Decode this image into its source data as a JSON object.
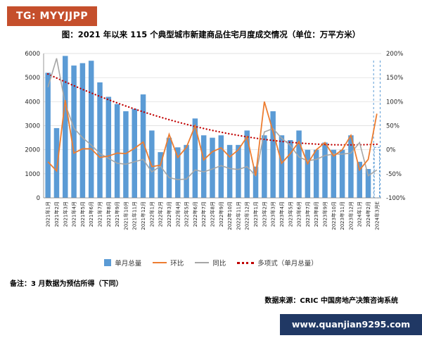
{
  "header": {
    "tg_badge": "TG: MYYJJPP"
  },
  "title": "图：2021 年以来 115 个典型城市新建商品住宅月度成交情况（单位：万平方米）",
  "footer": {
    "note": "备注：3 月数据为预估所得（下同）",
    "source": "数据来源：CRIC 中国房地产决策咨询系统",
    "website_badge": "www.quanjian9295.com"
  },
  "colors": {
    "bar": "#5B9BD5",
    "mom_line": "#ED7D31",
    "yoy_line": "#A6A6A6",
    "trend_line": "#C00000",
    "tg_badge_bg": "#C54F2C",
    "website_badge_bg": "#203864",
    "grid": "#D9D9D9",
    "axis": "#808080",
    "tick_text": "#262626"
  },
  "chart_data": {
    "type": "combo",
    "title": "图：2021 年以来 115 个典型城市新建商品住宅月度成交情况（单位：万平方米）",
    "legend": [
      "单月总量",
      "环比",
      "同比",
      "多项式（单月总量）"
    ],
    "legend_position": "bottom",
    "grid": true,
    "x_labels_rotated": true,
    "estimated_last_point": true,
    "left_axis": {
      "min": 0,
      "max": 6000,
      "step": 1000,
      "ticks": [
        0,
        1000,
        2000,
        3000,
        4000,
        5000,
        6000
      ]
    },
    "right_axis": {
      "min": -100,
      "max": 200,
      "step": 50,
      "ticks": [
        "-100%",
        "-50%",
        "0%",
        "50%",
        "100%",
        "150%",
        "200%"
      ]
    },
    "categories": [
      "2021年1月",
      "2021年2月",
      "2021年3月",
      "2021年4月",
      "2021年5月",
      "2021年6月",
      "2021年7月",
      "2021年8月",
      "2021年9月",
      "2021年10月",
      "2021年11月",
      "2021年12月",
      "2022年1月",
      "2022年2月",
      "2022年3月",
      "2022年4月",
      "2022年5月",
      "2022年6月",
      "2022年7月",
      "2022年8月",
      "2022年9月",
      "2022年10月",
      "2022年11月",
      "2022年12月",
      "2023年1月",
      "2023年2月",
      "2023年3月",
      "2023年4月",
      "2023年5月",
      "2023年6月",
      "2023年7月",
      "2023年8月",
      "2023年9月",
      "2023年10月",
      "2023年11月",
      "2023年12月",
      "2024年1月",
      "2024年2月",
      "2024年3月E"
    ],
    "series": [
      {
        "name": "单月总量",
        "type": "bar",
        "axis": "left",
        "unit": "万平方米",
        "values": [
          5200,
          2900,
          5900,
          5500,
          5600,
          5700,
          4800,
          4200,
          3900,
          3600,
          3700,
          4300,
          2800,
          1900,
          2500,
          2100,
          2200,
          3300,
          2600,
          2500,
          2600,
          2200,
          2200,
          2800,
          1300,
          2600,
          3600,
          2600,
          2400,
          2800,
          2000,
          2000,
          2300,
          2000,
          2000,
          2600,
          1500,
          1200,
          2100
        ]
      },
      {
        "name": "环比",
        "type": "line",
        "axis": "right",
        "unit": "%",
        "values": [
          -25,
          -44,
          103,
          -7,
          2,
          2,
          -16,
          -13,
          -7,
          -8,
          3,
          16,
          -35,
          -32,
          32,
          -16,
          5,
          50,
          -21,
          -4,
          4,
          -15,
          0,
          27,
          -54,
          100,
          38,
          -28,
          -8,
          17,
          -29,
          0,
          15,
          -13,
          0,
          30,
          -42,
          -20,
          75
        ]
      },
      {
        "name": "同比",
        "type": "line",
        "axis": "right",
        "unit": "%",
        "values": [
          130,
          190,
          95,
          45,
          25,
          10,
          -8,
          -18,
          -28,
          -30,
          -25,
          -20,
          -46,
          -34,
          -58,
          -62,
          -61,
          -42,
          -46,
          -40,
          -33,
          -39,
          -41,
          -35,
          -54,
          37,
          44,
          24,
          9,
          -15,
          -23,
          -20,
          -12,
          -9,
          -9,
          -7,
          15,
          -54,
          -42
        ]
      },
      {
        "name": "多项式（单月总量）",
        "type": "trendline",
        "axis": "left",
        "unit": "万平方米",
        "values": [
          5150,
          4982,
          4820,
          4662,
          4509,
          4361,
          4218,
          4080,
          3947,
          3818,
          3695,
          3576,
          3463,
          3354,
          3250,
          3151,
          3057,
          2968,
          2884,
          2804,
          2730,
          2660,
          2596,
          2536,
          2481,
          2431,
          2386,
          2346,
          2311,
          2280,
          2255,
          2234,
          2219,
          2208,
          2202,
          2201,
          2205,
          2214,
          2228
        ]
      }
    ]
  }
}
